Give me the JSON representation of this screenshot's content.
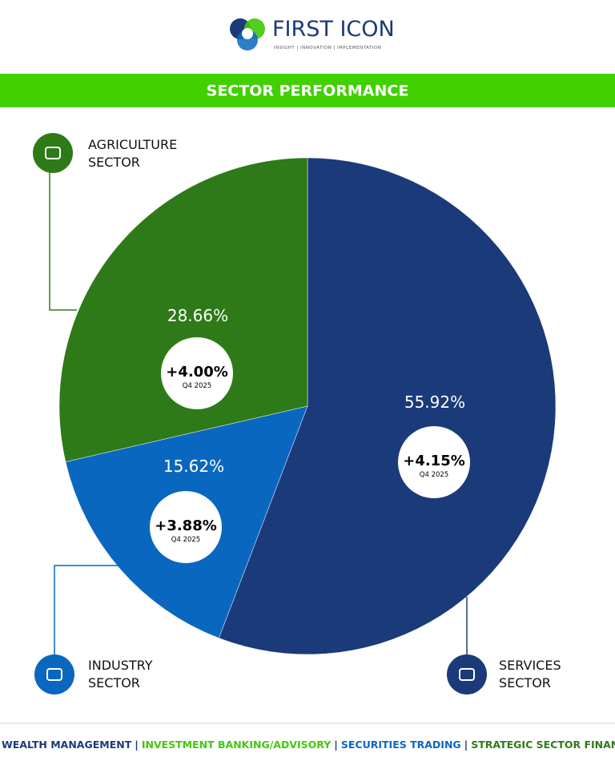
{
  "header": {
    "brand": "FIRST ICON",
    "tagline": "INSIGHT | INNOVATION | IMPLEMENTATION"
  },
  "chart_data": {
    "type": "pie",
    "title": "SECTOR PERFORMANCE",
    "categories": [
      "SERVICES SECTOR",
      "INDUSTRY SECTOR",
      "AGRICULTURE SECTOR"
    ],
    "values": [
      55.92,
      15.62,
      28.66
    ],
    "value_labels": [
      "55.92%",
      "15.62%",
      "28.66%"
    ],
    "colors": [
      "#1b3a7a",
      "#0a67c0",
      "#2e7a18"
    ],
    "growth": [
      "+4.15%",
      "+3.88%",
      "+4.00%"
    ],
    "period": "Q4 2025"
  },
  "footer": {
    "separator": "|",
    "items": [
      {
        "text": "WEALTH MANAGEMENT",
        "color": "#1b3a7a"
      },
      {
        "text": "INVESTMENT BANKING/ADVISORY",
        "color": "#41c80a"
      },
      {
        "text": "SECURITIES TRADING",
        "color": "#0a67c0"
      },
      {
        "text": "STRATEGIC SECTOR FINANCE",
        "color": "#2e7a18"
      }
    ]
  }
}
